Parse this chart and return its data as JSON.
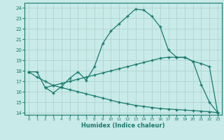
{
  "xlabel": "Humidex (Indice chaleur)",
  "bg_color": "#c8eae8",
  "line_color": "#1a7a6e",
  "grid_color": "#b8d8d4",
  "xlim": [
    -0.5,
    23.5
  ],
  "ylim": [
    13.8,
    24.5
  ],
  "yticks": [
    14,
    15,
    16,
    17,
    18,
    19,
    20,
    21,
    22,
    23,
    24
  ],
  "xticks": [
    0,
    1,
    2,
    3,
    4,
    5,
    6,
    7,
    8,
    9,
    10,
    11,
    12,
    13,
    14,
    15,
    16,
    17,
    18,
    19,
    20,
    21,
    22,
    23
  ],
  "curve1_x": [
    0,
    1,
    2,
    3,
    4,
    5,
    6,
    7,
    8,
    9,
    10,
    11,
    12,
    13,
    14,
    15,
    16,
    17,
    18,
    19,
    20,
    21,
    22,
    23
  ],
  "curve1_y": [
    17.9,
    17.9,
    16.4,
    15.9,
    16.5,
    17.3,
    17.9,
    17.1,
    18.4,
    20.6,
    21.8,
    22.5,
    23.2,
    23.9,
    23.8,
    23.2,
    22.2,
    20.0,
    19.3,
    19.3,
    18.9,
    16.7,
    15.0,
    14.0
  ],
  "curve2_x": [
    2,
    3,
    4,
    5,
    6,
    7,
    8,
    9,
    10,
    11,
    12,
    13,
    14,
    15,
    16,
    17,
    18,
    19,
    20,
    21,
    22,
    23
  ],
  "curve2_y": [
    16.4,
    16.6,
    16.8,
    17.0,
    17.2,
    17.4,
    17.6,
    17.8,
    18.0,
    18.2,
    18.4,
    18.6,
    18.8,
    19.0,
    19.2,
    19.3,
    19.3,
    19.3,
    18.9,
    18.7,
    18.4,
    14.0
  ],
  "curve3_x": [
    0,
    1,
    2,
    3,
    4,
    5,
    6,
    7,
    8,
    9,
    10,
    11,
    12,
    13,
    14,
    15,
    16,
    17,
    18,
    19,
    20,
    21,
    22,
    23
  ],
  "curve3_y": [
    17.9,
    17.4,
    17.0,
    16.6,
    16.4,
    16.2,
    16.0,
    15.8,
    15.6,
    15.4,
    15.2,
    15.0,
    14.85,
    14.7,
    14.6,
    14.5,
    14.4,
    14.35,
    14.3,
    14.25,
    14.2,
    14.15,
    14.1,
    14.0
  ]
}
